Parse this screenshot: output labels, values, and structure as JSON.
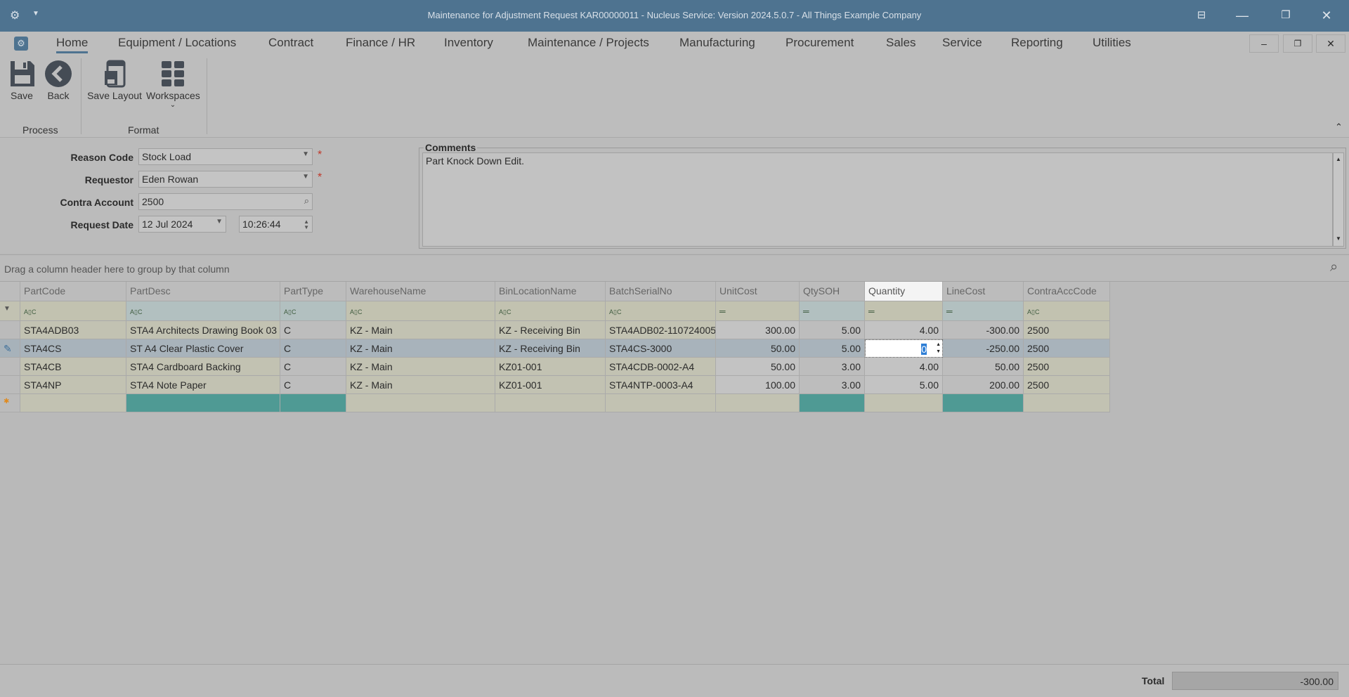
{
  "window": {
    "title": "Maintenance for Adjustment Request KAR00000011 - Nucleus Service: Version 2024.5.0.7 - All Things Example Company",
    "buttons": [
      "layout-icon",
      "minimize-icon",
      "restore-icon",
      "close-icon"
    ]
  },
  "menu": {
    "tabs": [
      "Home",
      "Equipment / Locations",
      "Contract",
      "Finance / HR",
      "Inventory",
      "Maintenance / Projects",
      "Manufacturing",
      "Procurement",
      "Sales",
      "Service",
      "Reporting",
      "Utilities"
    ],
    "active": "Home"
  },
  "ribbon": {
    "save": "Save",
    "back": "Back",
    "save_layout": "Save Layout",
    "workspaces": "Workspaces",
    "group_process": "Process",
    "group_format": "Format"
  },
  "form": {
    "reason_code_label": "Reason Code",
    "reason_code": "Stock Load",
    "requestor_label": "Requestor",
    "requestor": "Eden Rowan",
    "contra_label": "Contra Account",
    "contra": "2500",
    "date_label": "Request Date",
    "date": "12 Jul 2024",
    "time": "10:26:44",
    "comments_label": "Comments",
    "comments": "Part Knock Down Edit."
  },
  "grid": {
    "group_hint": "Drag a column header here to group by that column",
    "columns": [
      "PartCode",
      "PartDesc",
      "PartType",
      "WarehouseName",
      "BinLocationName",
      "BatchSerialNo",
      "UnitCost",
      "QtySOH",
      "Quantity",
      "LineCost",
      "ContraAccCode"
    ],
    "rows": [
      [
        "STA4ADB03",
        "STA4 Architects Drawing Book 03",
        "C",
        "KZ - Main",
        "KZ - Receiving Bin",
        "STA4ADB02-110724005",
        "300.00",
        "5.00",
        "4.00",
        "-300.00",
        "2500"
      ],
      [
        "STA4CS",
        "ST A4 Clear Plastic Cover",
        "C",
        "KZ - Main",
        "KZ - Receiving Bin",
        "STA4CS-3000",
        "50.00",
        "5.00",
        "0",
        "-250.00",
        "2500"
      ],
      [
        "STA4CB",
        "STA4 Cardboard Backing",
        "C",
        "KZ - Main",
        "KZ01-001",
        "STA4CDB-0002-A4",
        "50.00",
        "3.00",
        "4.00",
        "50.00",
        "2500"
      ],
      [
        "STA4NP",
        "STA4 Note Paper",
        "C",
        "KZ - Main",
        "KZ01-001",
        "STA4NTP-0003-A4",
        "100.00",
        "3.00",
        "5.00",
        "200.00",
        "2500"
      ]
    ]
  },
  "footer": {
    "total_label": "Total",
    "total": "-300.00"
  }
}
